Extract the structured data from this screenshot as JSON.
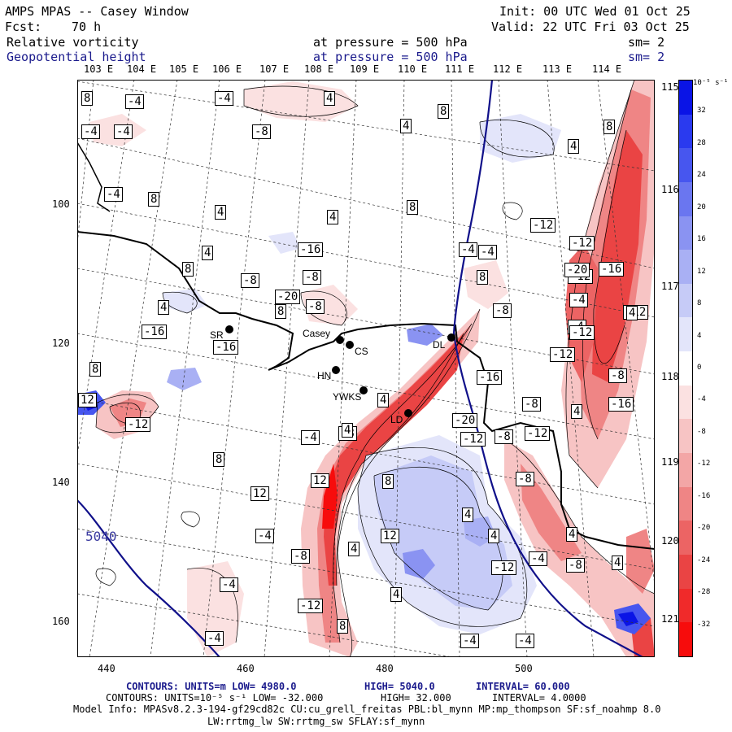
{
  "header": {
    "model": "AMPS MPAS -- Casey Window",
    "init": "Init: 00 UTC Wed 01 Oct 25",
    "fcst_label": "Fcst:",
    "fcst_value": "70 h",
    "valid": "Valid: 22 UTC Fri 03 Oct 25",
    "field1_name": "Relative vorticity",
    "field1_level": "at pressure =  500 hPa",
    "field1_smooth": "sm= 2",
    "field2_name": "Geopotential height",
    "field2_level": "at pressure =  500 hPa",
    "field2_smooth": "sm= 2"
  },
  "top_lon_labels": [
    "103 E",
    "104 E",
    "105 E",
    "106 E",
    "107 E",
    "108 E",
    "109 E",
    "110 E",
    "111 E",
    "112 E",
    "113 E",
    "114 E"
  ],
  "right_lon_labels": [
    "115 E",
    "116 E",
    "117 E",
    "118 E",
    "119 E",
    "120 E",
    "121 E"
  ],
  "x_axis_labels": [
    "440",
    "460",
    "480",
    "500"
  ],
  "y_axis_labels": [
    "100",
    "120",
    "140",
    "160"
  ],
  "colorbar": {
    "units": "10⁻⁵ s⁻¹",
    "ticks": [
      "32",
      "28",
      "24",
      "20",
      "16",
      "12",
      "8",
      "4",
      "0",
      "-4",
      "-8",
      "-12",
      "-16",
      "-20",
      "-24",
      "-28",
      "-32"
    ],
    "colors": [
      "#0a14e6",
      "#2a3aef",
      "#4756ef",
      "#6a76f0",
      "#8a93f2",
      "#a9b0f4",
      "#c6cbf7",
      "#e3e5fa",
      "#ffffff",
      "#fbe1e1",
      "#f7c4c4",
      "#f3a6a6",
      "#ef8585",
      "#ec6464",
      "#ea4444",
      "#f02a2a",
      "#f70c0c"
    ]
  },
  "stations": [
    {
      "name": "SR"
    },
    {
      "name": "Casey"
    },
    {
      "name": "CS"
    },
    {
      "name": "HN"
    },
    {
      "name": "YWKS"
    },
    {
      "name": "LD"
    },
    {
      "name": "DL"
    }
  ],
  "height_contour_label": "5040",
  "vorticity_labels": [
    "8",
    "-4",
    "-4",
    "4",
    "-4",
    "-4",
    "-8",
    "8",
    "4",
    "4",
    "-4",
    "8",
    "4",
    "4",
    "8",
    "-12",
    "-16",
    "8",
    "-8",
    "-20",
    "-8",
    "-4",
    "8",
    "8",
    "-12",
    "4",
    "4",
    "-16",
    "-16",
    "8",
    "-8",
    "-8",
    "-4",
    "-12",
    "-20",
    "-16",
    "-12",
    "-4",
    "-12",
    "4",
    "-12",
    "-8",
    "-16",
    "-20",
    "-16",
    "-8",
    "-12",
    "-8",
    "-12",
    "4",
    "8",
    "12",
    "-12",
    "4",
    "-8",
    "-4",
    "8",
    "12",
    "12",
    "8",
    "4",
    "-4",
    "-8",
    "-12",
    "4",
    "12",
    "4",
    "-4",
    "4",
    "-12",
    "-4",
    "4",
    "-8",
    "4",
    "-8",
    "-4",
    "-4",
    "-4",
    "8",
    "8",
    "-4",
    "4"
  ],
  "footer": {
    "line1_left": "CONTOURS:  UNITS=m  LOW=   4980.0",
    "line1_mid": "HIGH=  5040.0",
    "line1_right": "INTERVAL=   60.000",
    "line2_left": "CONTOURS:  UNITS=10⁻⁵ s⁻¹   LOW=  -32.000",
    "line2_mid": "HIGH=   32.000",
    "line2_right": "INTERVAL=    4.0000",
    "line3": "Model Info: MPASv8.2.3-194-gf29cd82c CU:cu_grell_freitas PBL:bl_mynn MP:mp_thompson SF:sf_noahmp 8.0",
    "line4": "LW:rrtmg_lw SW:rrtmg_sw SFLAY:sf_mynn"
  }
}
